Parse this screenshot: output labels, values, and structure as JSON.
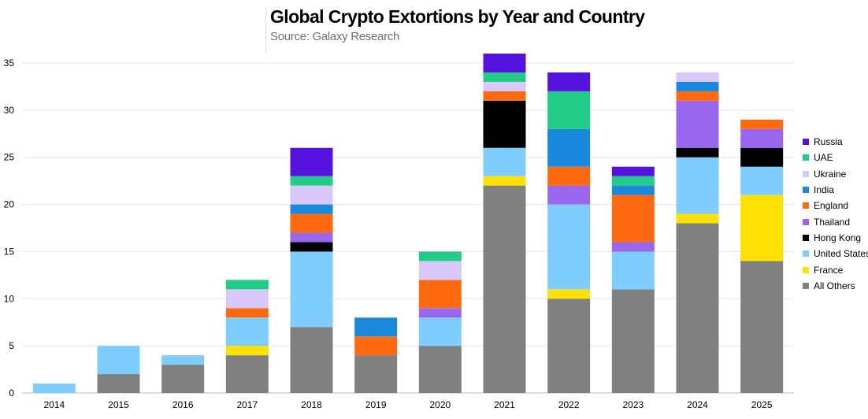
{
  "title": "Global Crypto Extortions by Year and Country",
  "subtitle": "Source: Galaxy Research",
  "chart_data": {
    "type": "bar",
    "stacked": true,
    "title": "Global Crypto Extortions by Year and Country",
    "subtitle": "Source: Galaxy Research",
    "categories": [
      "2014",
      "2015",
      "2016",
      "2017",
      "2018",
      "2019",
      "2020",
      "2021",
      "2022",
      "2023",
      "2024",
      "2025"
    ],
    "ylim": [
      0,
      35
    ],
    "yticks": [
      0,
      5,
      10,
      15,
      20,
      25,
      30,
      35
    ],
    "grid": true,
    "legend_position": "right",
    "series": [
      {
        "name": "All Others",
        "color": "#808080",
        "values": [
          0,
          2,
          3,
          4,
          7,
          4,
          5,
          22,
          10,
          11,
          18,
          14
        ]
      },
      {
        "name": "France",
        "color": "#FFE000",
        "values": [
          0,
          0,
          0,
          1,
          0,
          0,
          0,
          1,
          1,
          0,
          1,
          7
        ]
      },
      {
        "name": "United States",
        "color": "#7FCCFF",
        "values": [
          1,
          3,
          1,
          3,
          8,
          0,
          3,
          3,
          9,
          4,
          6,
          3
        ]
      },
      {
        "name": "Hong Kong",
        "color": "#000000",
        "values": [
          0,
          0,
          0,
          0,
          1,
          0,
          0,
          5,
          0,
          0,
          1,
          2
        ]
      },
      {
        "name": "Thailand",
        "color": "#9966EE",
        "values": [
          0,
          0,
          0,
          0,
          1,
          0,
          1,
          0,
          2,
          1,
          5,
          2
        ]
      },
      {
        "name": "England",
        "color": "#FF6A10",
        "values": [
          0,
          0,
          0,
          1,
          2,
          2,
          3,
          1,
          2,
          5,
          1,
          1
        ]
      },
      {
        "name": "India",
        "color": "#1A88DD",
        "values": [
          0,
          0,
          0,
          0,
          1,
          2,
          0,
          0,
          4,
          1,
          1,
          0
        ]
      },
      {
        "name": "Ukraine",
        "color": "#D8C8F8",
        "values": [
          0,
          0,
          0,
          2,
          2,
          0,
          2,
          1,
          0,
          0,
          1,
          0
        ]
      },
      {
        "name": "UAE",
        "color": "#22CC88",
        "values": [
          0,
          0,
          0,
          1,
          1,
          0,
          1,
          1,
          4,
          1,
          0,
          0
        ]
      },
      {
        "name": "Russia",
        "color": "#5511DD",
        "values": [
          0,
          0,
          0,
          0,
          3,
          0,
          0,
          2,
          2,
          1,
          0,
          0
        ]
      }
    ]
  }
}
